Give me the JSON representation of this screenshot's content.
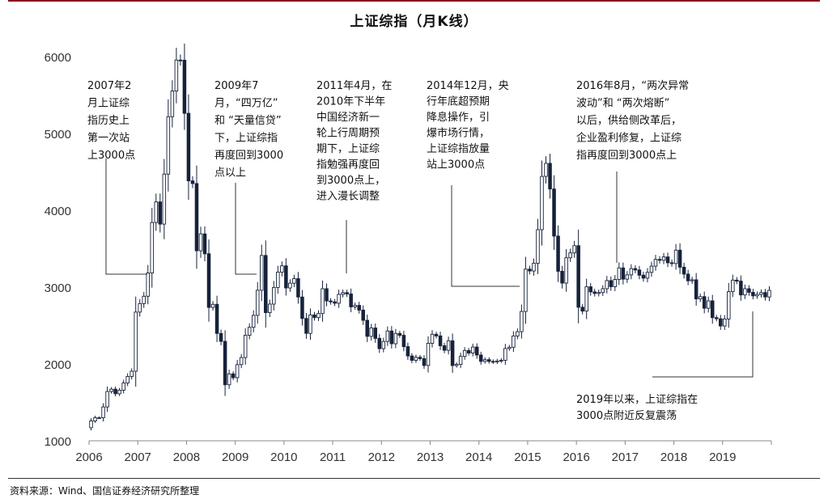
{
  "title": "上证综指（月K线）",
  "source": "资料来源：Wind、国信证券经济研究所整理",
  "colors": {
    "up": "#ffffff",
    "down": "#17223b",
    "stroke": "#17223b",
    "axis": "#888888",
    "rule": "#8a0f1e",
    "annotation_line": "#333333"
  },
  "chart_data": {
    "type": "candlestick",
    "title": "上证综指（月K线）",
    "ylim": [
      1000,
      6200
    ],
    "yticks": [
      1000,
      2000,
      3000,
      4000,
      5000,
      6000
    ],
    "xticks": [
      "2006",
      "2007",
      "2008",
      "2009",
      "2010",
      "2011",
      "2012",
      "2013",
      "2014",
      "2015",
      "2016",
      "2017",
      "2018",
      "2019"
    ],
    "x_start_year": 2006,
    "monthly_close": [
      1258,
      1300,
      1300,
      1440,
      1641,
      1672,
      1612,
      1658,
      1752,
      1837,
      1905,
      2675,
      2786,
      2881,
      3184,
      3841,
      4109,
      3820,
      4471,
      5218,
      5552,
      5955,
      5954,
      5262,
      4383,
      4348,
      3473,
      3693,
      3434,
      2736,
      2776,
      2397,
      2294,
      1729,
      1871,
      1821,
      1991,
      2083,
      2373,
      2477,
      2633,
      2959,
      3412,
      2668,
      2779,
      2996,
      3195,
      3277,
      2989,
      3051,
      3110,
      2871,
      2592,
      2398,
      2638,
      2603,
      2656,
      2979,
      2820,
      2808,
      2790,
      2906,
      2928,
      2911,
      2743,
      2762,
      2701,
      2568,
      2359,
      2468,
      2333,
      2199,
      2293,
      2429,
      2263,
      2397,
      2373,
      2225,
      2104,
      2047,
      2087,
      2069,
      1980,
      2269,
      2386,
      2365,
      2237,
      2178,
      2301,
      1979,
      1994,
      2098,
      2175,
      2142,
      2220,
      2116,
      2033,
      2056,
      2033,
      2026,
      2039,
      2048,
      2201,
      2217,
      2364,
      2420,
      2683,
      3234,
      3210,
      3310,
      3747,
      4441,
      4611,
      4277,
      3664,
      3206,
      3052,
      3382,
      3445,
      3539,
      2738,
      2688,
      3004,
      2938,
      2917,
      2930,
      2979,
      3085,
      3005,
      3100,
      3250,
      3104,
      3159,
      3241,
      3223,
      3155,
      3117,
      3192,
      3273,
      3361,
      3349,
      3393,
      3317,
      3307,
      3481,
      3259,
      3169,
      3082,
      3095,
      2847,
      2876,
      2725,
      2821,
      2603,
      2588,
      2494,
      2585,
      2941,
      3091,
      3078,
      2898,
      2979,
      2932,
      2886,
      2905,
      2929,
      2872,
      2958
    ]
  },
  "annotations": [
    {
      "id": "a2007",
      "lines": [
        "2007年2",
        "月上证综",
        "指历史上",
        "第一次站",
        "上3000点"
      ]
    },
    {
      "id": "a2009",
      "lines": [
        "2009年7",
        "月，“四万亿”",
        "和 “天量信贷”",
        "下，上证综指",
        "再度回到3000",
        "点以上"
      ]
    },
    {
      "id": "a2011",
      "lines": [
        "2011年4月，在",
        "2010年下半年",
        "中国经济新一",
        "轮上行周期预",
        "期下，上证综",
        "指勉强再度回",
        "到3000点上，",
        "进入漫长调整"
      ]
    },
    {
      "id": "a2014",
      "lines": [
        "2014年12月，央",
        "行年底超预期",
        "降息操作，引",
        "爆市场行情，",
        "上证综指放量",
        "站上3000点"
      ]
    },
    {
      "id": "a2016",
      "lines": [
        "2016年8月，“两次异常",
        "波动”和 “两次熔断”",
        "以后，供给侧改革后，",
        "企业盈利修复，上证综",
        "指再度回到3000点上"
      ]
    },
    {
      "id": "a2019",
      "lines": [
        "2019年以来，上证综指在",
        "3000点附近反复震荡"
      ]
    }
  ]
}
